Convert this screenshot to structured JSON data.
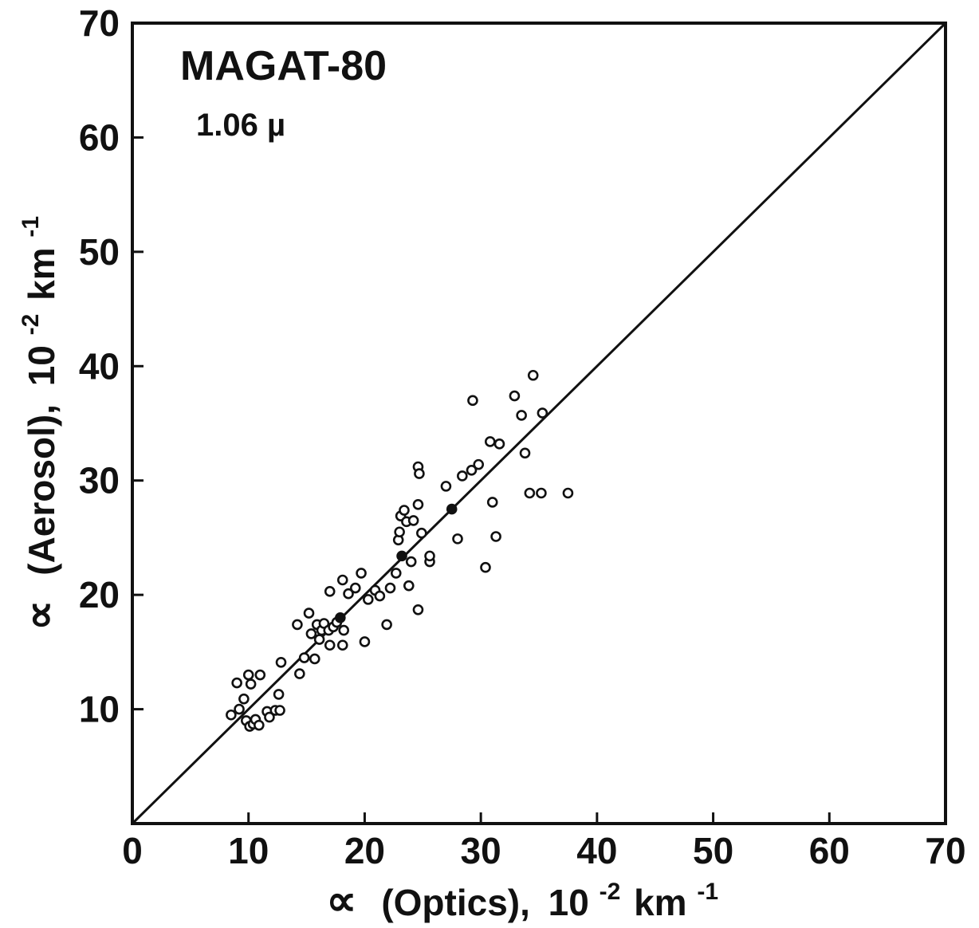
{
  "chart_data": {
    "type": "scatter",
    "annotation": "MAGAT-80",
    "wavelength": "1.06 µ",
    "xlabel": {
      "sym": "∝",
      "text": "(Optics),",
      "base": "10",
      "exp1": "-2",
      "unit": "km",
      "exp2": "-1"
    },
    "ylabel": {
      "sym": "∝",
      "text": "(Aerosol),",
      "base": "10",
      "exp1": "-2",
      "unit": "km",
      "exp2": "-1"
    },
    "xlim": [
      0,
      70
    ],
    "ylim": [
      0,
      70
    ],
    "x_ticks": [
      "0",
      "10",
      "20",
      "30",
      "40",
      "50",
      "60",
      "70"
    ],
    "y_ticks": [
      "10",
      "20",
      "30",
      "40",
      "50",
      "60",
      "70"
    ],
    "reference_line": "y = x",
    "grid": false,
    "marker": "open-circle",
    "points": [
      [
        8.5,
        9.5
      ],
      [
        9.2,
        10.0
      ],
      [
        9.0,
        12.3
      ],
      [
        9.6,
        10.9
      ],
      [
        9.8,
        9.0
      ],
      [
        10.0,
        13.0
      ],
      [
        10.2,
        12.2
      ],
      [
        10.1,
        8.5
      ],
      [
        10.4,
        8.7
      ],
      [
        10.6,
        9.1
      ],
      [
        10.9,
        8.6
      ],
      [
        11.0,
        13.0
      ],
      [
        11.6,
        9.8
      ],
      [
        11.8,
        9.3
      ],
      [
        12.3,
        9.9
      ],
      [
        12.6,
        11.3
      ],
      [
        12.7,
        9.9
      ],
      [
        12.8,
        14.1
      ],
      [
        14.2,
        17.4
      ],
      [
        14.4,
        13.1
      ],
      [
        14.8,
        14.5
      ],
      [
        15.2,
        18.4
      ],
      [
        15.4,
        16.6
      ],
      [
        15.7,
        14.4
      ],
      [
        15.9,
        17.4
      ],
      [
        16.1,
        16.1
      ],
      [
        16.3,
        16.9
      ],
      [
        16.5,
        17.5
      ],
      [
        16.9,
        16.9
      ],
      [
        17.0,
        20.3
      ],
      [
        17.0,
        15.6
      ],
      [
        17.3,
        17.2
      ],
      [
        17.6,
        17.6
      ],
      [
        17.9,
        18.0
      ],
      [
        18.1,
        21.3
      ],
      [
        18.2,
        16.9
      ],
      [
        18.1,
        15.6
      ],
      [
        18.6,
        20.1
      ],
      [
        19.2,
        20.6
      ],
      [
        19.7,
        21.9
      ],
      [
        20.0,
        15.9
      ],
      [
        20.3,
        19.6
      ],
      [
        20.9,
        20.4
      ],
      [
        21.3,
        19.9
      ],
      [
        21.9,
        17.4
      ],
      [
        22.2,
        20.6
      ],
      [
        22.7,
        21.9
      ],
      [
        22.9,
        24.8
      ],
      [
        23.0,
        25.5
      ],
      [
        23.1,
        26.9
      ],
      [
        23.2,
        23.4
      ],
      [
        23.4,
        27.4
      ],
      [
        23.6,
        26.4
      ],
      [
        23.8,
        20.8
      ],
      [
        24.0,
        22.9
      ],
      [
        24.2,
        26.5
      ],
      [
        24.6,
        18.7
      ],
      [
        24.6,
        27.9
      ],
      [
        24.6,
        31.2
      ],
      [
        24.7,
        30.6
      ],
      [
        24.9,
        25.4
      ],
      [
        25.6,
        22.9
      ],
      [
        25.6,
        23.4
      ],
      [
        27.0,
        29.5
      ],
      [
        27.5,
        27.5
      ],
      [
        28.0,
        24.9
      ],
      [
        28.4,
        30.4
      ],
      [
        29.2,
        30.9
      ],
      [
        29.3,
        37.0
      ],
      [
        29.8,
        31.4
      ],
      [
        30.4,
        22.4
      ],
      [
        30.8,
        33.4
      ],
      [
        31.0,
        28.1
      ],
      [
        31.3,
        25.1
      ],
      [
        31.6,
        33.2
      ],
      [
        32.9,
        37.4
      ],
      [
        33.5,
        35.7
      ],
      [
        33.8,
        32.4
      ],
      [
        34.2,
        28.9
      ],
      [
        34.5,
        39.2
      ],
      [
        35.2,
        28.9
      ],
      [
        35.3,
        35.9
      ],
      [
        37.5,
        28.9
      ]
    ],
    "filled_points": [
      [
        23.2,
        23.4
      ],
      [
        27.5,
        27.5
      ],
      [
        17.9,
        18.0
      ]
    ]
  }
}
